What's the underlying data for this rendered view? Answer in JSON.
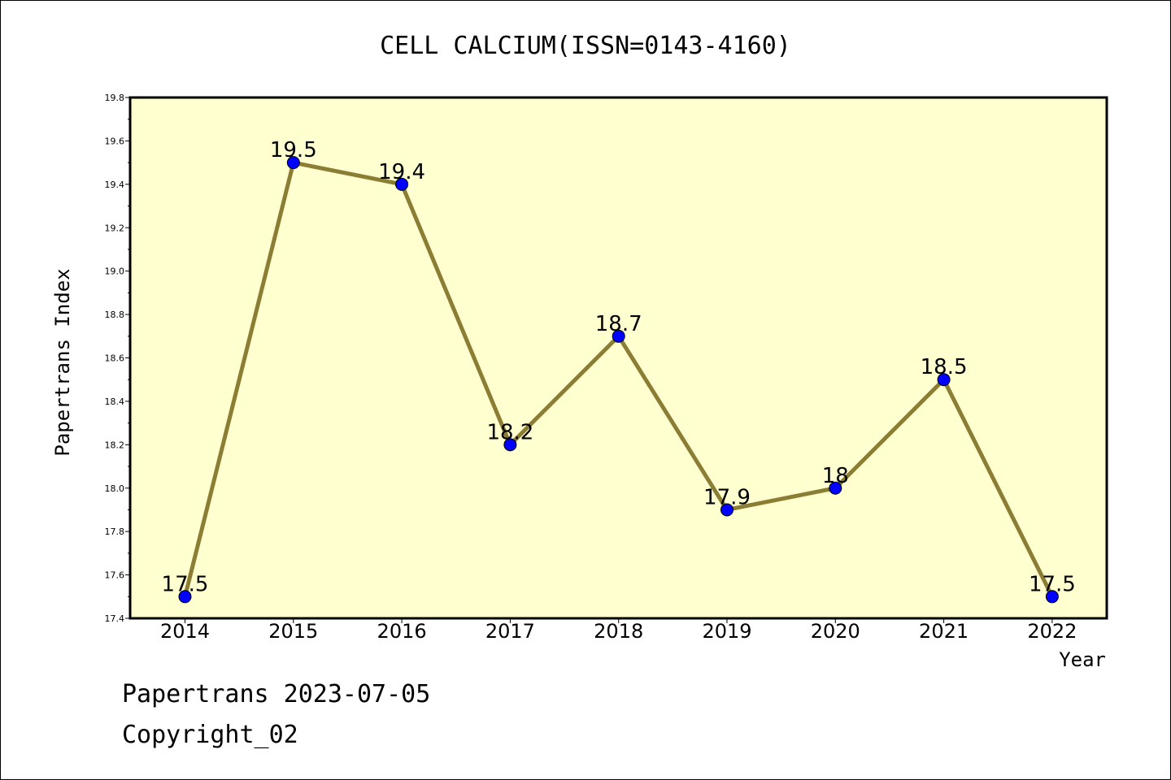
{
  "chart_data": {
    "type": "line",
    "title": "CELL CALCIUM(ISSN=0143-4160)",
    "xlabel": "Year",
    "ylabel": "Papertrans Index",
    "categories": [
      "2014",
      "2015",
      "2016",
      "2017",
      "2018",
      "2019",
      "2020",
      "2021",
      "2022"
    ],
    "series": [
      {
        "values": [
          17.5,
          19.5,
          19.4,
          18.2,
          18.7,
          17.9,
          18.0,
          18.5,
          17.5
        ],
        "labels": [
          "17.5",
          "19.5",
          "19.4",
          "18.2",
          "18.7",
          "17.9",
          "18",
          "18.5",
          "17.5"
        ]
      }
    ],
    "ylim": [
      17.4,
      19.8
    ],
    "yticks": [
      "17.4",
      "17.6",
      "17.8",
      "18.0",
      "18.2",
      "18.4",
      "18.6",
      "18.8",
      "19.0",
      "19.2",
      "19.4",
      "19.6",
      "19.8"
    ],
    "grid": false,
    "colors": {
      "plot_background": "#FFFFD0",
      "line": "#8B7D34",
      "marker": "#0000FF"
    }
  },
  "footer": {
    "line1": "Papertrans 2023-07-05",
    "line2": "Copyright_02"
  }
}
